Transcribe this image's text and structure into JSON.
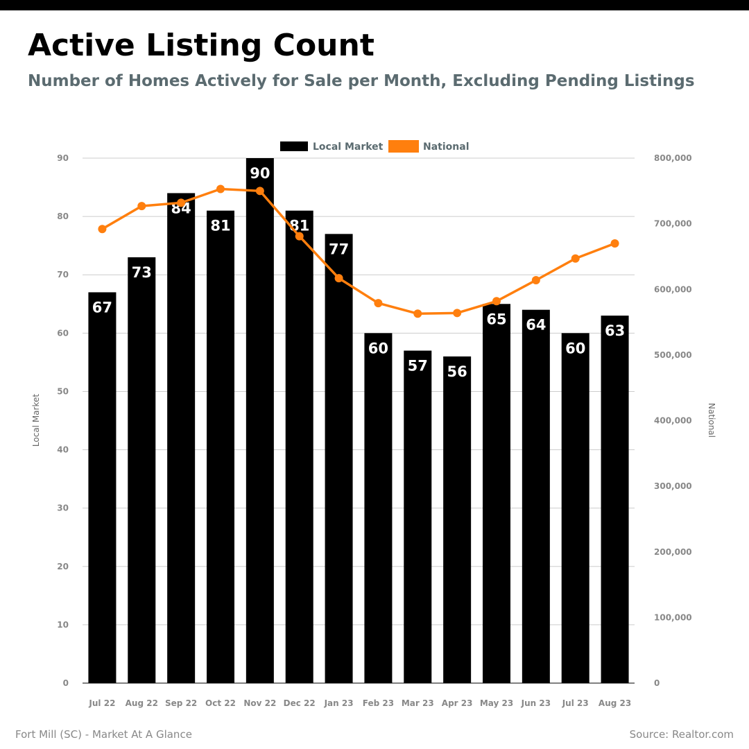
{
  "header": {
    "title": "Active Listing Count",
    "subtitle": "Number of Homes Actively for Sale per Month, Excluding Pending Listings"
  },
  "footer": {
    "left": "Fort Mill (SC) - Market At A Glance",
    "right": "Source: Realtor.com"
  },
  "colors": {
    "local": "#000000",
    "national": "#ff7f0e",
    "grid": "#cccccc"
  },
  "chart_data": {
    "type": "bar",
    "categories": [
      "Jul 22",
      "Aug 22",
      "Sep 22",
      "Oct 22",
      "Nov 22",
      "Dec 22",
      "Jan 23",
      "Feb 23",
      "Mar 23",
      "Apr 23",
      "May 23",
      "Jun 23",
      "Jul 23",
      "Aug 23"
    ],
    "series": [
      {
        "name": "Local Market",
        "type": "bar",
        "axis": "left",
        "values": [
          67,
          73,
          84,
          81,
          90,
          81,
          77,
          60,
          57,
          56,
          65,
          64,
          60,
          63
        ],
        "labels": [
          "67",
          "73",
          "84",
          "81",
          "90",
          "81",
          "77",
          "60",
          "57",
          "56",
          "65",
          "64",
          "60",
          "63"
        ]
      },
      {
        "name": "National",
        "type": "line",
        "axis": "right",
        "values": [
          692000,
          727000,
          732000,
          753000,
          750000,
          681000,
          617000,
          579000,
          563000,
          564000,
          582000,
          614000,
          647000,
          670000
        ]
      }
    ],
    "ylabel": "Local Market",
    "y2label": "National",
    "ylim": [
      0,
      90
    ],
    "y2lim": [
      0,
      800000
    ],
    "yticks": [
      "0",
      "10",
      "20",
      "30",
      "40",
      "50",
      "60",
      "70",
      "80",
      "90"
    ],
    "y2ticks": [
      "0",
      "100,000",
      "200,000",
      "300,000",
      "400,000",
      "500,000",
      "600,000",
      "700,000",
      "800,000"
    ],
    "grid": true,
    "legend_position": "top-center"
  }
}
